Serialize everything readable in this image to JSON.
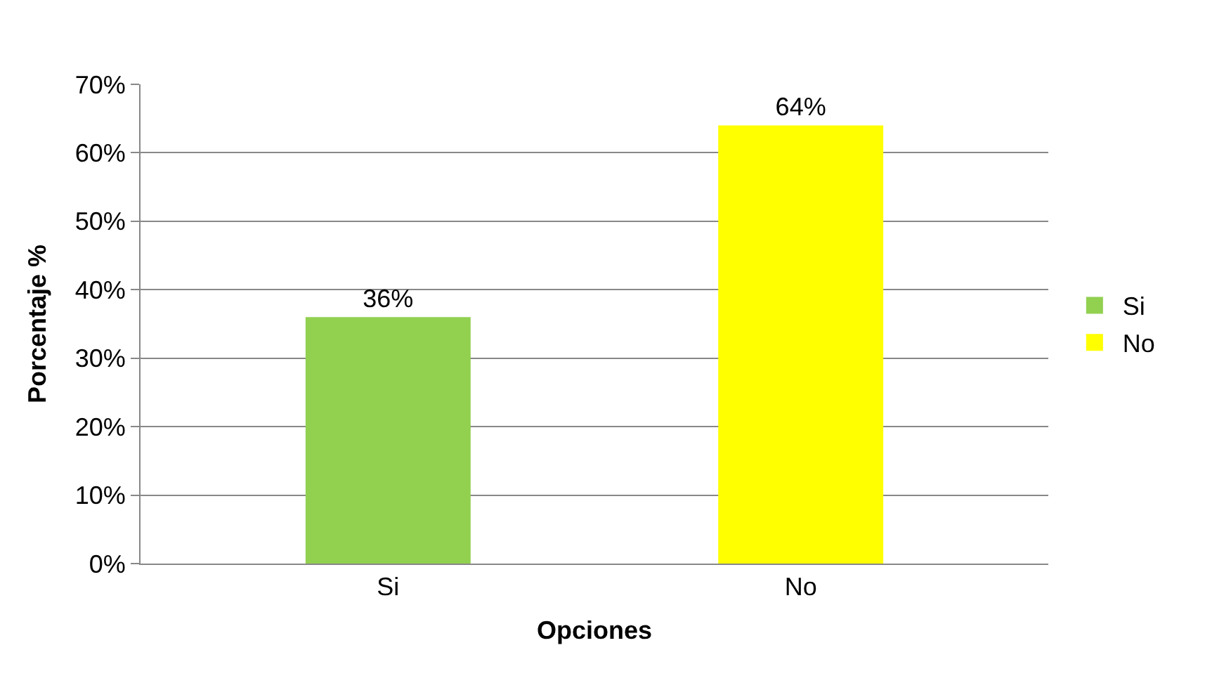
{
  "chart_data": {
    "type": "bar",
    "xlabel": "Opciones",
    "ylabel": "Porcentaje %",
    "categories": [
      "Si",
      "No"
    ],
    "series": [
      {
        "name": "Si",
        "color": "#92d050",
        "values": [
          36,
          null
        ],
        "value_labels": [
          "36%",
          null
        ]
      },
      {
        "name": "No",
        "color": "#ffff00",
        "values": [
          null,
          64
        ],
        "value_labels": [
          null,
          "64%"
        ]
      }
    ],
    "ylim": [
      0,
      70
    ],
    "yticks": [
      {
        "value": 0,
        "label": "0%"
      },
      {
        "value": 10,
        "label": "10%"
      },
      {
        "value": 20,
        "label": "20%"
      },
      {
        "value": 30,
        "label": "30%"
      },
      {
        "value": 40,
        "label": "40%"
      },
      {
        "value": 50,
        "label": "50%"
      },
      {
        "value": 60,
        "label": "60%"
      },
      {
        "value": 70,
        "label": "70%"
      }
    ],
    "grid": "y",
    "legend": "right"
  }
}
